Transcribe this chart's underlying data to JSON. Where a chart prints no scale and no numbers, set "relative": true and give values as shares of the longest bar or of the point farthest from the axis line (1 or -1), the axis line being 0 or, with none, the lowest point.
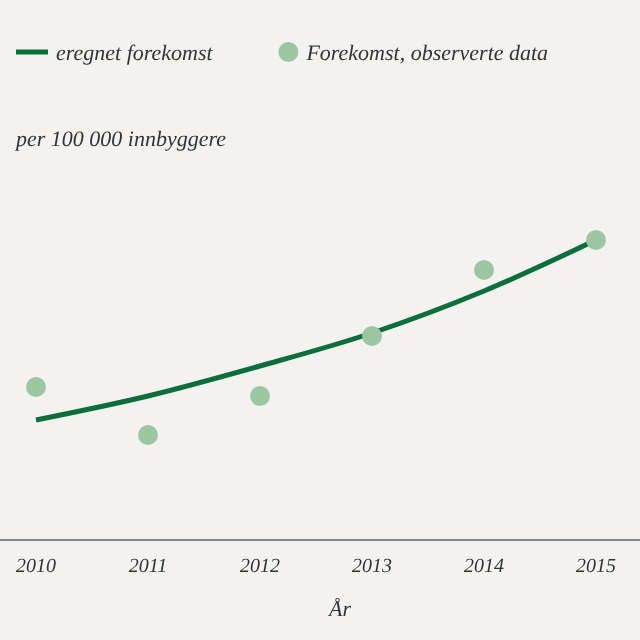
{
  "chart_data": {
    "type": "line",
    "relative": true,
    "xlabel": "År",
    "ylabel": "per 100 000 innbyggere",
    "categories": [
      "2010",
      "2011",
      "2012",
      "2013",
      "2014",
      "2015"
    ],
    "legend": "top left",
    "series": [
      {
        "name": "eregnet forekomst",
        "type": "line",
        "color": "#0b6e3b",
        "values": [
          0.4,
          0.48,
          0.58,
          0.69,
          0.83,
          1.0
        ]
      },
      {
        "name": "Forekomst, observerte data",
        "type": "scatter",
        "marker": "circle",
        "color": "#9cc5a1",
        "values": [
          0.51,
          0.35,
          0.48,
          0.68,
          0.9,
          1.0
        ]
      }
    ]
  }
}
